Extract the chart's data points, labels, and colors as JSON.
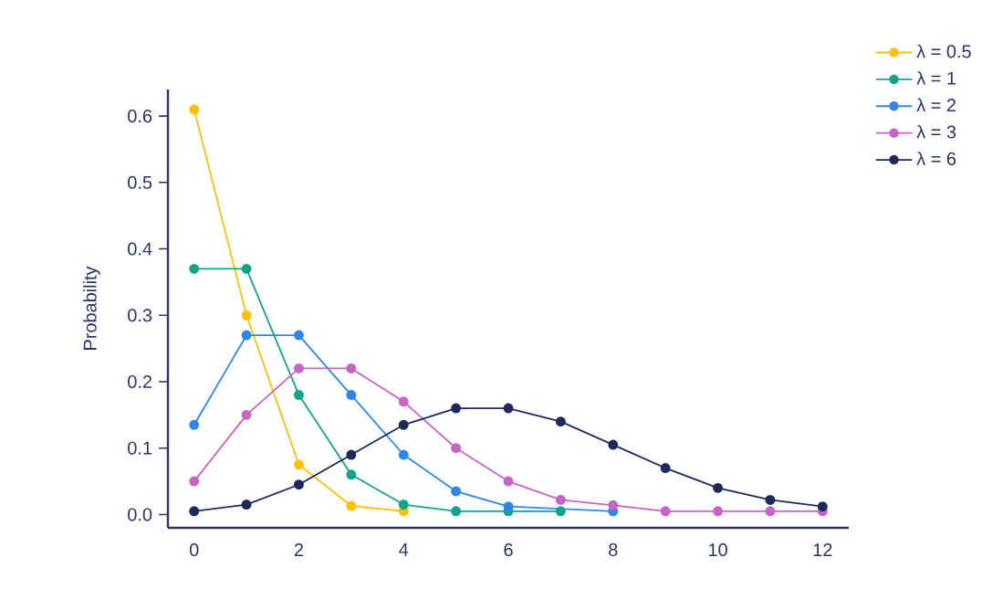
{
  "chart_data": {
    "type": "line",
    "ylabel": "Probability",
    "xlim": [
      -0.5,
      12.5
    ],
    "xticks": [
      0,
      2,
      4,
      6,
      8,
      10,
      12
    ],
    "ylim": [
      -0.02,
      0.64
    ],
    "yticks": [
      {
        "value": 0,
        "label": "0.0"
      },
      0.1,
      0.2,
      0.3,
      0.4,
      0.5,
      0.6
    ],
    "marker": "circle",
    "legend": "top right",
    "grid": false,
    "series": [
      {
        "name": "λ = 0.5",
        "color": "#ffc107",
        "x": [
          0,
          1,
          2,
          3,
          4
        ],
        "values": [
          0.61,
          0.3,
          0.075,
          0.013,
          0.005
        ]
      },
      {
        "name": "λ = 1",
        "color": "#12a58a",
        "x": [
          0,
          1,
          2,
          3,
          4,
          5,
          6,
          7
        ],
        "values": [
          0.37,
          0.37,
          0.18,
          0.06,
          0.015,
          0.005,
          0.005,
          0.005
        ]
      },
      {
        "name": "λ = 2",
        "color": "#2f87e8",
        "x": [
          0,
          1,
          2,
          3,
          4,
          5,
          6,
          7,
          8
        ],
        "values": [
          0.135,
          0.27,
          0.27,
          0.18,
          0.09,
          0.035,
          0.012,
          null,
          0.005
        ]
      },
      {
        "name": "λ = 3",
        "color": "#c764c6",
        "x": [
          0,
          1,
          2,
          3,
          4,
          5,
          6,
          7,
          8,
          9,
          10,
          11,
          12
        ],
        "values": [
          0.05,
          0.15,
          0.22,
          0.22,
          0.17,
          0.1,
          0.05,
          0.022,
          0.014,
          0.005,
          0.005,
          0.005,
          0.005
        ]
      },
      {
        "name": "λ = 6",
        "color": "#1f2a5c",
        "x": [
          0,
          1,
          2,
          3,
          4,
          5,
          6,
          7,
          8,
          9,
          10,
          11,
          12
        ],
        "values": [
          0.005,
          0.015,
          0.045,
          0.09,
          0.135,
          0.16,
          0.16,
          0.14,
          0.105,
          0.07,
          0.04,
          0.022,
          0.012
        ]
      }
    ]
  }
}
